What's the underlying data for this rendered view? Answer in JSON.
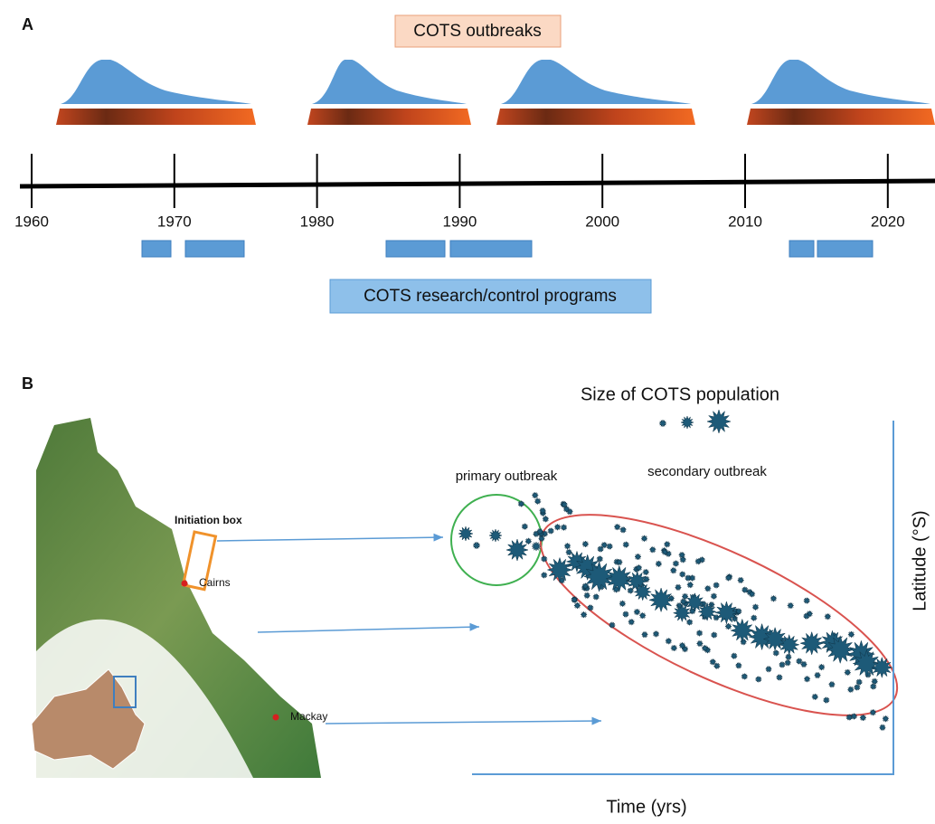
{
  "panel_a": {
    "label": "A",
    "outbreaks_label": "COTS outbreaks",
    "programs_label": "COTS research/control programs",
    "years": [
      "1960",
      "1970",
      "1980",
      "1990",
      "2000",
      "2010",
      "2020"
    ]
  },
  "panel_b": {
    "label": "B",
    "legend_title": "Size of COTS population",
    "primary": "primary outbreak",
    "secondary": "secondary outbreak",
    "initiation_box": "Initiation box",
    "cities": [
      "Cairns",
      "Mackay"
    ],
    "y_axis": "Latitude (°S)",
    "x_axis": "Time (yrs)"
  }
}
